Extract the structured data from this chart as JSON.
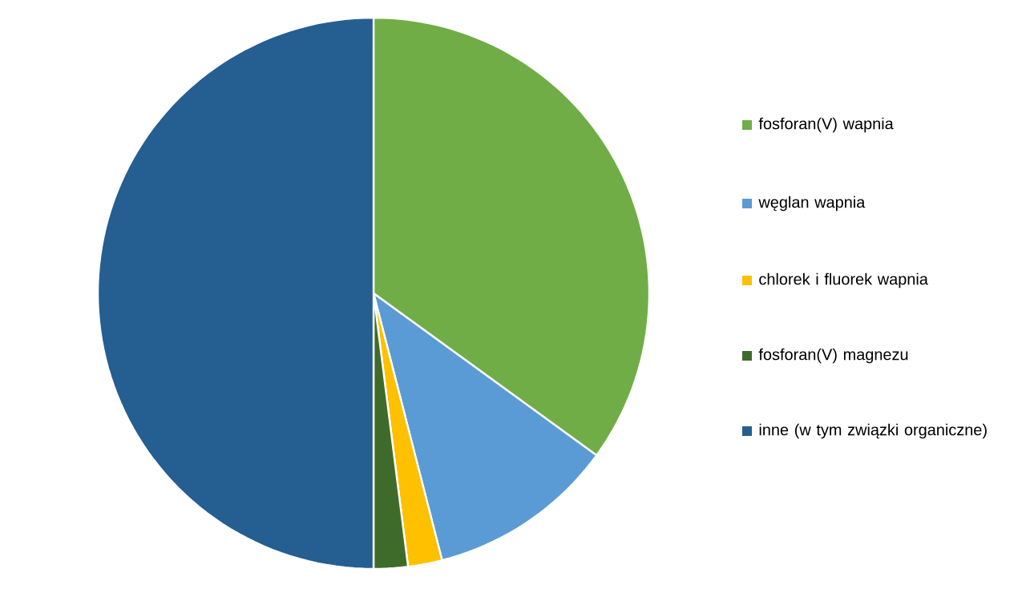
{
  "chart_data": {
    "type": "pie",
    "categories": [
      "fosforan(V) wapnia",
      "węglan wapnia",
      "chlorek i fluorek wapnia",
      "fosforan(V) magnezu",
      "inne (w tym związki organiczne)"
    ],
    "values": [
      35,
      11,
      2,
      2,
      50
    ],
    "colors": [
      "#70ad47",
      "#5b9bd5",
      "#ffc000",
      "#3e6b2a",
      "#255e91"
    ],
    "legend": "right"
  }
}
